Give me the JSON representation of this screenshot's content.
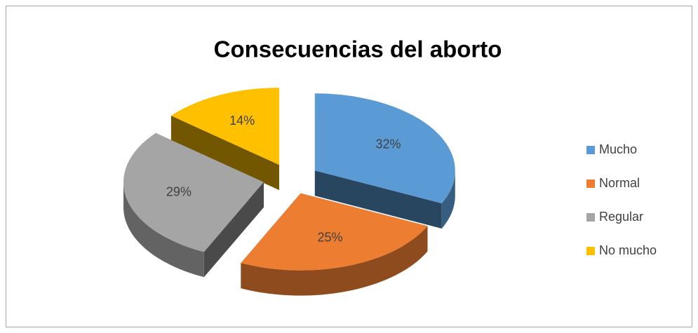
{
  "chart_data": {
    "type": "pie",
    "title": "Consecuencias del aborto",
    "categories": [
      "Mucho",
      "Normal",
      "Regular",
      "No mucho"
    ],
    "values": [
      32,
      25,
      29,
      14
    ],
    "value_labels": [
      "32%",
      "25%",
      "29%",
      "14%"
    ],
    "colors": [
      "#5b9bd5",
      "#ed7d31",
      "#a5a5a5",
      "#ffc000"
    ],
    "legend": "right"
  }
}
